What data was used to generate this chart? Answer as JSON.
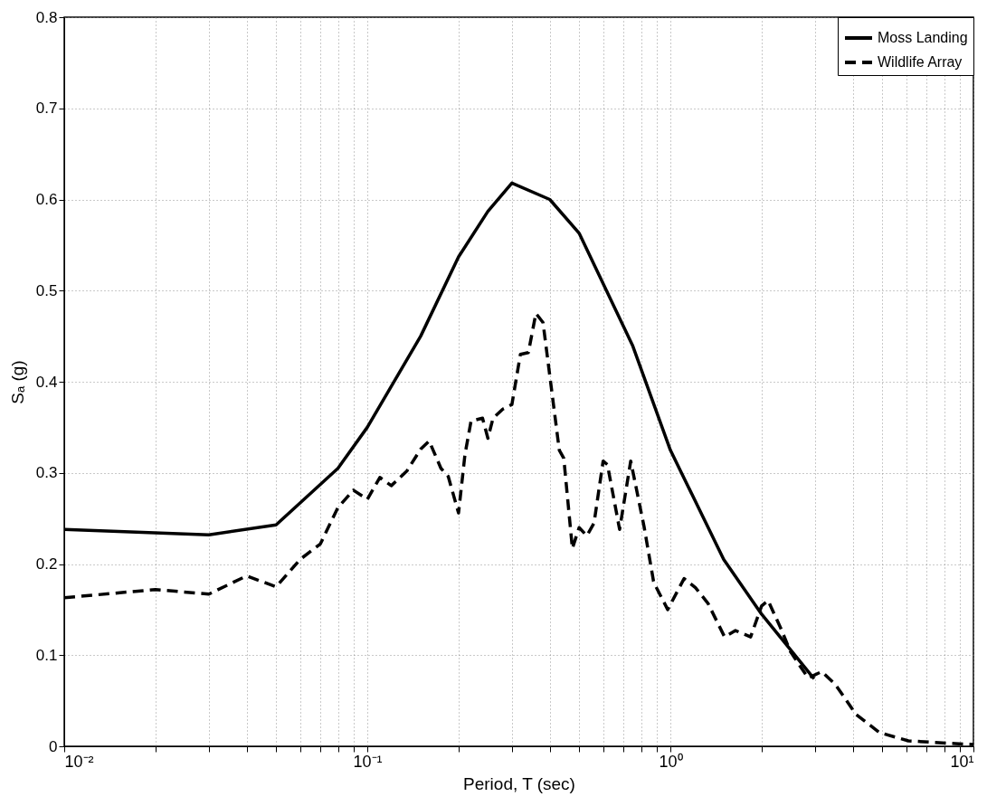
{
  "chart_data": {
    "type": "line",
    "xlabel": "Period, T (sec)",
    "ylabel": "Sₐ (g)",
    "log": "x",
    "grid": true,
    "legend": "top right",
    "xlim": [
      0.01,
      10
    ],
    "ylim": [
      0,
      0.8
    ],
    "xticks": [
      {
        "value": 0.01,
        "label": "10⁻²"
      },
      {
        "value": 0.02,
        "label": null
      },
      {
        "value": 0.03,
        "label": null
      },
      {
        "value": 0.04,
        "label": null
      },
      {
        "value": 0.05,
        "label": null
      },
      {
        "value": 0.06,
        "label": null
      },
      {
        "value": 0.07,
        "label": null
      },
      {
        "value": 0.08,
        "label": null
      },
      {
        "value": 0.09,
        "label": null
      },
      {
        "value": 0.1,
        "label": "10⁻¹"
      },
      {
        "value": 0.2,
        "label": null
      },
      {
        "value": 0.3,
        "label": null
      },
      {
        "value": 0.4,
        "label": null
      },
      {
        "value": 0.5,
        "label": null
      },
      {
        "value": 0.6,
        "label": null
      },
      {
        "value": 0.7,
        "label": null
      },
      {
        "value": 0.8,
        "label": null
      },
      {
        "value": 0.9,
        "label": null
      },
      {
        "value": 1,
        "label": "10⁰"
      },
      {
        "value": 2,
        "label": null
      },
      {
        "value": 3,
        "label": null
      },
      {
        "value": 4,
        "label": null
      },
      {
        "value": 5,
        "label": null
      },
      {
        "value": 6,
        "label": null
      },
      {
        "value": 7,
        "label": null
      },
      {
        "value": 8,
        "label": null
      },
      {
        "value": 9,
        "label": null
      },
      {
        "value": 10,
        "label": "10¹"
      }
    ],
    "yticks": [
      0,
      0.1,
      0.2,
      0.3,
      0.4,
      0.5,
      0.6,
      0.7,
      0.8
    ],
    "series": [
      {
        "name": "Moss Landing",
        "color": "#000000",
        "line_style": "solid",
        "x": [
          0.01,
          0.03,
          0.05,
          0.08,
          0.1,
          0.15,
          0.2,
          0.25,
          0.3,
          0.4,
          0.5,
          0.75,
          1.0,
          1.5,
          2.0,
          2.98
        ],
        "values": [
          0.238,
          0.232,
          0.243,
          0.305,
          0.35,
          0.45,
          0.537,
          0.587,
          0.618,
          0.6,
          0.563,
          0.44,
          0.325,
          0.205,
          0.145,
          0.074
        ]
      },
      {
        "name": "Wildlife Array",
        "color": "#000000",
        "line_style": "dashed",
        "x": [
          0.01,
          0.02,
          0.03,
          0.04,
          0.05,
          0.06,
          0.07,
          0.08,
          0.09,
          0.1,
          0.11,
          0.12,
          0.135,
          0.15,
          0.16,
          0.175,
          0.185,
          0.2,
          0.21,
          0.22,
          0.24,
          0.25,
          0.26,
          0.28,
          0.3,
          0.32,
          0.34,
          0.36,
          0.38,
          0.43,
          0.445,
          0.475,
          0.5,
          0.53,
          0.56,
          0.6,
          0.62,
          0.68,
          0.74,
          0.82,
          0.88,
          0.9,
          0.98,
          1.11,
          1.21,
          1.33,
          1.51,
          1.64,
          1.84,
          2.0,
          2.1,
          2.31,
          2.49,
          2.69,
          2.85,
          3.16,
          3.5,
          4.1,
          4.9,
          6.1,
          8.7,
          10
        ],
        "values": [
          0.163,
          0.172,
          0.167,
          0.187,
          0.175,
          0.205,
          0.222,
          0.262,
          0.281,
          0.271,
          0.295,
          0.286,
          0.302,
          0.326,
          0.335,
          0.305,
          0.296,
          0.256,
          0.32,
          0.357,
          0.36,
          0.338,
          0.36,
          0.37,
          0.375,
          0.43,
          0.432,
          0.475,
          0.465,
          0.325,
          0.316,
          0.217,
          0.24,
          0.231,
          0.245,
          0.313,
          0.309,
          0.238,
          0.313,
          0.24,
          0.181,
          0.174,
          0.15,
          0.184,
          0.174,
          0.157,
          0.12,
          0.127,
          0.12,
          0.154,
          0.16,
          0.13,
          0.104,
          0.087,
          0.075,
          0.082,
          0.068,
          0.035,
          0.015,
          0.006,
          0.003,
          0.002
        ]
      }
    ]
  }
}
